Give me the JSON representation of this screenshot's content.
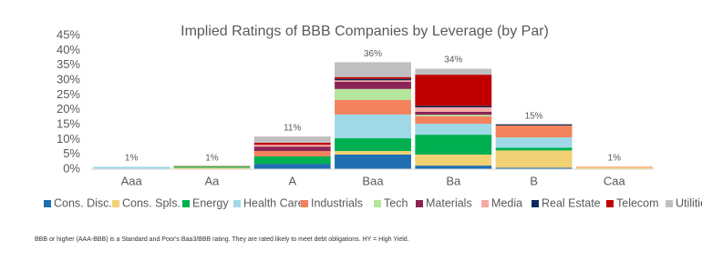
{
  "chart_data": {
    "type": "stacked_bar",
    "title": "Implied Ratings of BBB Companies by Leverage (by Par)",
    "categories": [
      "Aaa",
      "Aa",
      "A",
      "Baa",
      "Ba",
      "B",
      "Caa"
    ],
    "series": [
      {
        "name": "Cons. Disc.",
        "color": "#1f6fb0",
        "values": [
          0.2,
          0,
          1.8,
          4.9,
          1.2,
          0.5,
          0
        ]
      },
      {
        "name": "Cons. Spls.",
        "color": "#f1d174",
        "values": [
          0,
          0.5,
          0,
          1.2,
          3.7,
          5.8,
          0.6
        ]
      },
      {
        "name": "Energy",
        "color": "#00b050",
        "values": [
          0,
          0.4,
          2.5,
          4.3,
          6.7,
          0.9,
          0
        ]
      },
      {
        "name": "Health Care",
        "color": "#9fd8e6",
        "values": [
          0.6,
          0,
          0,
          8.0,
          3.7,
          3.5,
          0
        ]
      },
      {
        "name": "Industrials",
        "color": "#f4825c",
        "values": [
          0,
          0.2,
          1.8,
          4.9,
          2.5,
          4.0,
          0.2
        ]
      },
      {
        "name": "Tech",
        "color": "#b4e59c",
        "values": [
          0,
          0,
          0,
          3.7,
          0.5,
          0,
          0
        ]
      },
      {
        "name": "Materials",
        "color": "#8b2455",
        "values": [
          0,
          0,
          1.5,
          2.4,
          1.0,
          0,
          0
        ]
      },
      {
        "name": "Media",
        "color": "#f7a9a6",
        "values": [
          0,
          0,
          0.6,
          0.5,
          1.5,
          0,
          0
        ]
      },
      {
        "name": "Real Estate",
        "color": "#0b2b5c",
        "values": [
          0,
          0,
          0,
          0.5,
          0.5,
          0.3,
          0
        ]
      },
      {
        "name": "Telecom",
        "color": "#c00000",
        "values": [
          0,
          0,
          0.7,
          0.6,
          10.5,
          0,
          0
        ]
      },
      {
        "name": "Utilities",
        "color": "#bfbfbf",
        "values": [
          0,
          0,
          2.1,
          5.0,
          2.0,
          0.3,
          0
        ]
      }
    ],
    "totals": [
      1,
      1,
      11,
      36,
      34,
      15,
      1
    ],
    "total_labels": [
      "1%",
      "1%",
      "11%",
      "36%",
      "34%",
      "15%",
      "1%"
    ],
    "ylim": [
      0,
      45
    ],
    "yticks": [
      {
        "value": 0,
        "label": "0%"
      },
      {
        "value": 5,
        "label": "5%"
      },
      {
        "value": 10,
        "label": "10%"
      },
      {
        "value": 15,
        "label": "15%"
      },
      {
        "value": 20,
        "label": "20%"
      },
      {
        "value": 25,
        "label": "25%"
      },
      {
        "value": 30,
        "label": "30%"
      },
      {
        "value": 35,
        "label": "35%"
      },
      {
        "value": 40,
        "label": "40%"
      },
      {
        "value": 45,
        "label": "45%"
      }
    ],
    "footnote": "BBB or higher (AAA-BBB) is a Standard and Poor's Baa3/BBB rating. They are rated likely to meet debt obligations. HY = High Yield."
  }
}
